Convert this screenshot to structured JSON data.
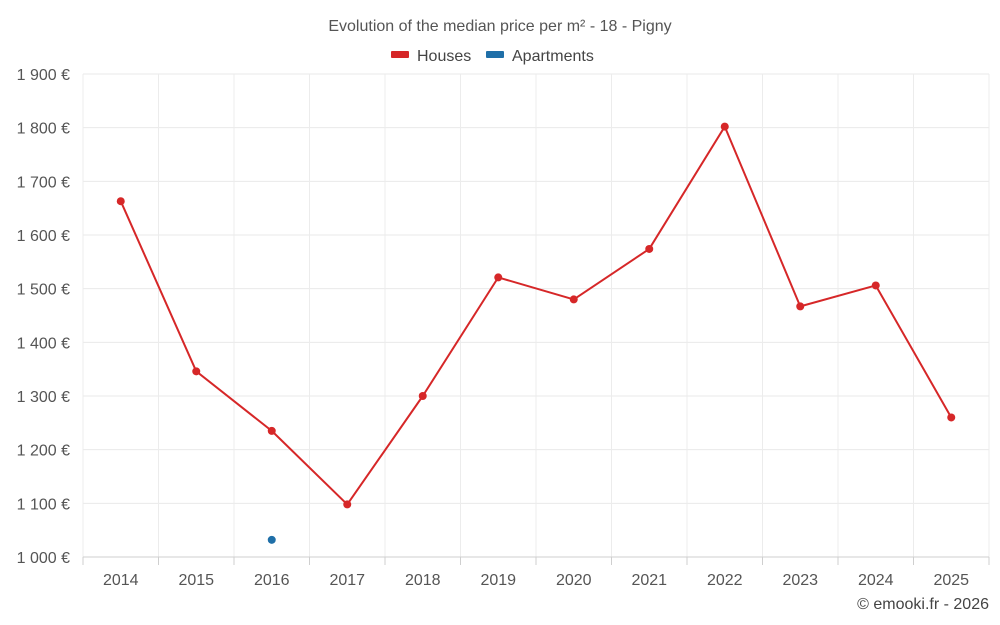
{
  "chart_data": {
    "type": "line",
    "title": "Evolution of the median price per m² - 18 - Pigny",
    "categories": [
      "2014",
      "2015",
      "2016",
      "2017",
      "2018",
      "2019",
      "2020",
      "2021",
      "2022",
      "2023",
      "2024",
      "2025"
    ],
    "series": [
      {
        "name": "Houses",
        "color": "#d62728",
        "values": [
          1663,
          1346,
          1235,
          1098,
          1300,
          1521,
          1480,
          1574,
          1802,
          1467,
          1506,
          1260
        ]
      },
      {
        "name": "Apartments",
        "color": "#1f6fa8",
        "values": [
          null,
          null,
          1032,
          null,
          null,
          null,
          null,
          null,
          null,
          null,
          null,
          null
        ]
      }
    ],
    "yticks": [
      1000,
      1100,
      1200,
      1300,
      1400,
      1500,
      1600,
      1700,
      1800,
      1900
    ],
    "ytick_labels": [
      "1 000 €",
      "1 100 €",
      "1 200 €",
      "1 300 €",
      "1 400 €",
      "1 500 €",
      "1 600 €",
      "1 700 €",
      "1 800 €",
      "1 900 €"
    ],
    "ylim": [
      1000,
      1900
    ],
    "xlabel": "",
    "ylabel": "",
    "grid": true,
    "legend_position": "top-center",
    "credit": "© emooki.fr - 2026"
  }
}
